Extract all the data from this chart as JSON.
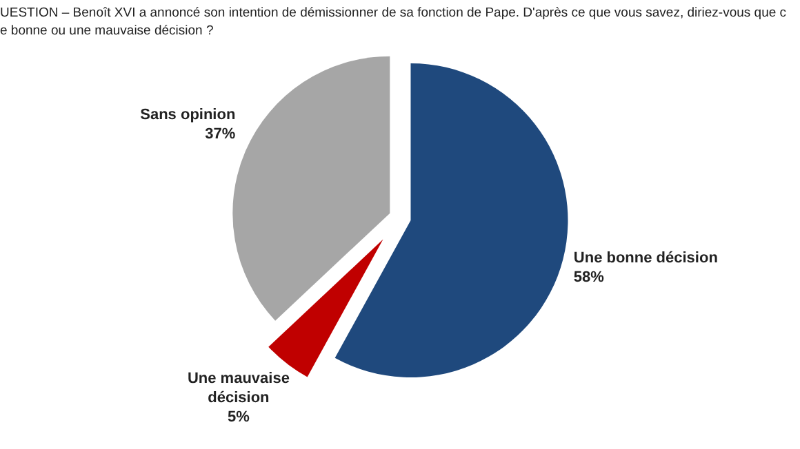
{
  "chart_data": {
    "type": "pie",
    "title": "UESTION – Benoît XVI a annoncé son intention de démissionner de sa fonction de Pape. D'après ce que vous savez, diriez-vous que c",
    "subtitle": "e bonne ou une mauvaise décision ?",
    "categories": [
      "Une bonne décision",
      "Une mauvaise décision",
      "Sans opinion"
    ],
    "values": [
      58,
      5,
      37
    ],
    "colors": [
      "#1f497d",
      "#c00000",
      "#a6a6a6"
    ],
    "value_labels": [
      "58%",
      "5%",
      "37%"
    ]
  }
}
